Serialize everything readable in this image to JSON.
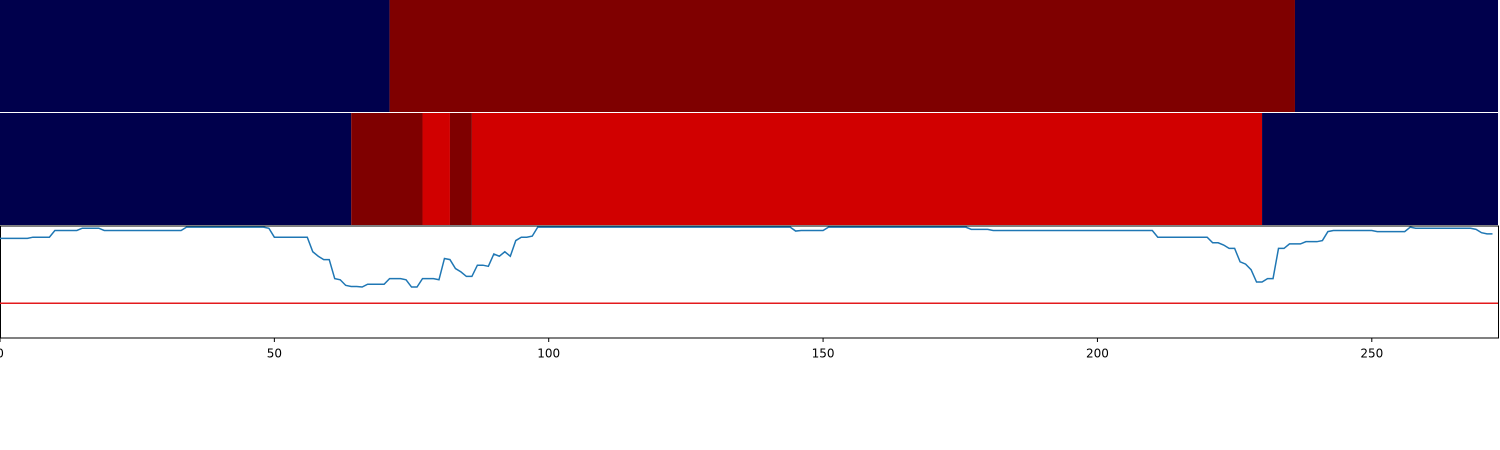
{
  "chart_data": [
    {
      "type": "heatmap",
      "xlim": [
        0,
        273
      ],
      "segments": [
        {
          "start": 0,
          "end": 71,
          "color": "#00004c"
        },
        {
          "start": 71,
          "end": 236,
          "color": "#7f0000"
        },
        {
          "start": 236,
          "end": 273,
          "color": "#00004c"
        }
      ]
    },
    {
      "type": "heatmap",
      "xlim": [
        0,
        273
      ],
      "segments": [
        {
          "start": 0,
          "end": 64,
          "color": "#00004c"
        },
        {
          "start": 64,
          "end": 77,
          "color": "#7f0000"
        },
        {
          "start": 77,
          "end": 82,
          "color": "#d10000"
        },
        {
          "start": 82,
          "end": 86,
          "color": "#7f0000"
        },
        {
          "start": 86,
          "end": 230,
          "color": "#d10000"
        },
        {
          "start": 230,
          "end": 273,
          "color": "#00004c"
        }
      ]
    },
    {
      "type": "line",
      "xlim": [
        0,
        273
      ],
      "ylim": [
        0,
        1
      ],
      "xticks": [
        0,
        50,
        100,
        150,
        200,
        250
      ],
      "hlines": [
        {
          "value": 0.31,
          "color": "#e31a1c"
        }
      ],
      "x": [
        0,
        1,
        2,
        3,
        4,
        5,
        6,
        7,
        8,
        9,
        10,
        11,
        12,
        13,
        14,
        15,
        16,
        17,
        18,
        19,
        20,
        21,
        22,
        23,
        24,
        25,
        26,
        27,
        28,
        29,
        30,
        31,
        32,
        33,
        34,
        35,
        36,
        37,
        38,
        39,
        40,
        41,
        42,
        43,
        44,
        45,
        46,
        47,
        48,
        49,
        50,
        51,
        52,
        53,
        54,
        55,
        56,
        57,
        58,
        59,
        60,
        61,
        62,
        63,
        64,
        65,
        66,
        67,
        68,
        69,
        70,
        71,
        72,
        73,
        74,
        75,
        76,
        77,
        78,
        79,
        80,
        81,
        82,
        83,
        84,
        85,
        86,
        87,
        88,
        89,
        90,
        91,
        92,
        93,
        94,
        95,
        96,
        97,
        98,
        99,
        100,
        101,
        102,
        103,
        104,
        105,
        106,
        107,
        108,
        109,
        110,
        111,
        112,
        113,
        114,
        115,
        116,
        117,
        118,
        119,
        120,
        121,
        122,
        123,
        124,
        125,
        126,
        127,
        128,
        129,
        130,
        131,
        132,
        133,
        134,
        135,
        136,
        137,
        138,
        139,
        140,
        141,
        142,
        143,
        144,
        145,
        146,
        147,
        148,
        149,
        150,
        151,
        152,
        153,
        154,
        155,
        156,
        157,
        158,
        159,
        160,
        161,
        162,
        163,
        164,
        165,
        166,
        167,
        168,
        169,
        170,
        171,
        172,
        173,
        174,
        175,
        176,
        177,
        178,
        179,
        180,
        181,
        182,
        183,
        184,
        185,
        186,
        187,
        188,
        189,
        190,
        191,
        192,
        193,
        194,
        195,
        196,
        197,
        198,
        199,
        200,
        201,
        202,
        203,
        204,
        205,
        206,
        207,
        208,
        209,
        210,
        211,
        212,
        213,
        214,
        215,
        216,
        217,
        218,
        219,
        220,
        221,
        222,
        223,
        224,
        225,
        226,
        227,
        228,
        229,
        230,
        231,
        232,
        233,
        234,
        235,
        236,
        237,
        238,
        239,
        240,
        241,
        242,
        243,
        244,
        245,
        246,
        247,
        248,
        249,
        250,
        251,
        252,
        253,
        254,
        255,
        256,
        257,
        258,
        259,
        260,
        261,
        262,
        263,
        264,
        265,
        266,
        267,
        268,
        269,
        270,
        271,
        272
      ],
      "series": [
        {
          "color": "#1f77b4",
          "values": [
            0.89,
            0.89,
            0.89,
            0.89,
            0.89,
            0.89,
            0.9,
            0.9,
            0.9,
            0.9,
            0.96,
            0.96,
            0.96,
            0.96,
            0.96,
            0.98,
            0.98,
            0.98,
            0.98,
            0.96,
            0.96,
            0.96,
            0.96,
            0.96,
            0.96,
            0.96,
            0.96,
            0.96,
            0.96,
            0.96,
            0.96,
            0.96,
            0.96,
            0.96,
            0.99,
            0.99,
            0.99,
            0.99,
            0.99,
            0.99,
            0.99,
            0.99,
            0.99,
            0.99,
            0.99,
            0.99,
            0.99,
            0.99,
            0.99,
            0.98,
            0.9,
            0.9,
            0.9,
            0.9,
            0.9,
            0.9,
            0.9,
            0.77,
            0.73,
            0.7,
            0.7,
            0.53,
            0.52,
            0.47,
            0.46,
            0.46,
            0.455,
            0.48,
            0.48,
            0.48,
            0.48,
            0.53,
            0.53,
            0.53,
            0.52,
            0.455,
            0.455,
            0.53,
            0.53,
            0.53,
            0.52,
            0.71,
            0.7,
            0.62,
            0.59,
            0.55,
            0.55,
            0.65,
            0.65,
            0.64,
            0.75,
            0.73,
            0.77,
            0.73,
            0.87,
            0.9,
            0.9,
            0.91,
            0.99,
            0.99,
            0.99,
            0.99,
            0.99,
            0.99,
            0.99,
            0.99,
            0.99,
            0.99,
            0.99,
            0.99,
            0.99,
            0.99,
            0.99,
            0.99,
            0.99,
            0.99,
            0.99,
            0.99,
            0.99,
            0.99,
            0.99,
            0.99,
            0.99,
            0.99,
            0.99,
            0.99,
            0.99,
            0.99,
            0.99,
            0.99,
            0.99,
            0.99,
            0.99,
            0.99,
            0.99,
            0.99,
            0.99,
            0.99,
            0.99,
            0.99,
            0.99,
            0.99,
            0.99,
            0.99,
            0.99,
            0.955,
            0.96,
            0.96,
            0.96,
            0.96,
            0.96,
            0.99,
            0.99,
            0.99,
            0.99,
            0.99,
            0.99,
            0.99,
            0.99,
            0.99,
            0.99,
            0.99,
            0.99,
            0.99,
            0.99,
            0.99,
            0.99,
            0.99,
            0.99,
            0.99,
            0.99,
            0.99,
            0.99,
            0.99,
            0.99,
            0.99,
            0.99,
            0.97,
            0.97,
            0.97,
            0.97,
            0.96,
            0.96,
            0.96,
            0.96,
            0.96,
            0.96,
            0.96,
            0.96,
            0.96,
            0.96,
            0.96,
            0.96,
            0.96,
            0.96,
            0.96,
            0.96,
            0.96,
            0.96,
            0.96,
            0.96,
            0.96,
            0.96,
            0.96,
            0.96,
            0.96,
            0.96,
            0.96,
            0.96,
            0.96,
            0.96,
            0.9,
            0.9,
            0.9,
            0.9,
            0.9,
            0.9,
            0.9,
            0.9,
            0.9,
            0.9,
            0.85,
            0.85,
            0.83,
            0.8,
            0.8,
            0.68,
            0.66,
            0.61,
            0.5,
            0.5,
            0.53,
            0.53,
            0.8,
            0.8,
            0.84,
            0.84,
            0.84,
            0.86,
            0.86,
            0.86,
            0.87,
            0.95,
            0.96,
            0.96,
            0.96,
            0.96,
            0.96,
            0.96,
            0.96,
            0.96,
            0.95,
            0.95,
            0.95,
            0.95,
            0.95,
            0.95,
            0.99,
            0.98,
            0.98,
            0.98,
            0.98,
            0.98,
            0.98,
            0.98,
            0.98,
            0.98,
            0.98,
            0.98,
            0.97,
            0.94,
            0.93,
            0.93
          ]
        }
      ]
    }
  ]
}
